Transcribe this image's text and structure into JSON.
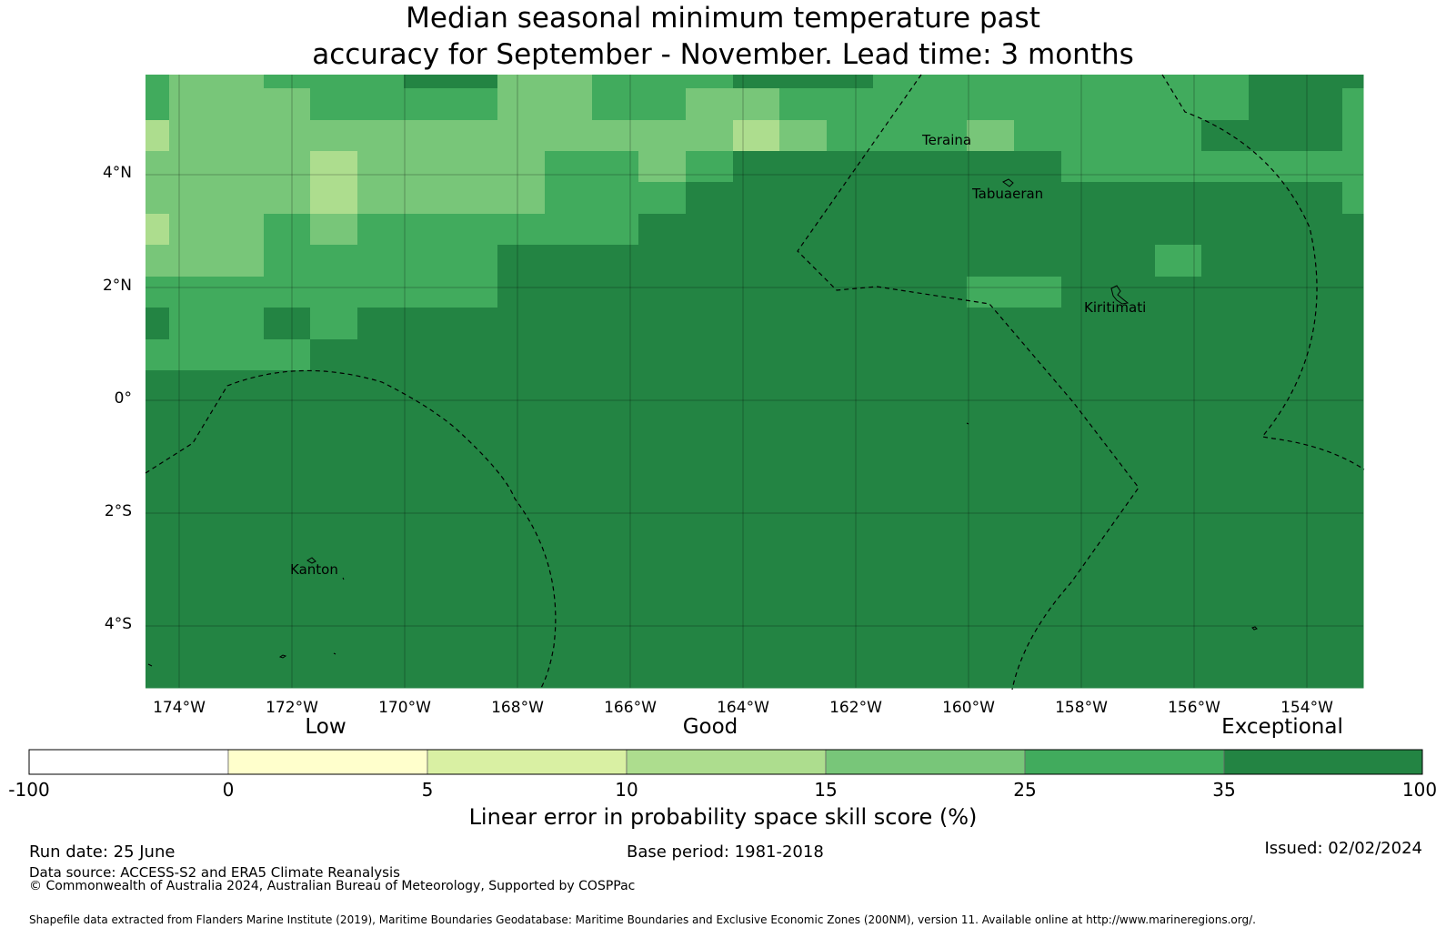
{
  "title_line1": "Median seasonal minimum temperature past",
  "title_line2": "accuracy for September - November. Lead time: 3 months",
  "map": {
    "lon_labels": [
      "174°W",
      "172°W",
      "170°W",
      "168°W",
      "166°W",
      "164°W",
      "162°W",
      "160°W",
      "158°W",
      "156°W",
      "154°W"
    ],
    "lat_labels": [
      "4°N",
      "2°N",
      "0°",
      "2°S",
      "4°S"
    ],
    "places": [
      "Teraina",
      "Tabuaeran",
      "Kiritimati",
      "Kanton"
    ]
  },
  "colorbar": {
    "bands": [
      "Low",
      "Good",
      "Exceptional"
    ],
    "ticks": [
      "-100",
      "0",
      "5",
      "10",
      "15",
      "25",
      "35",
      "100"
    ],
    "colors": [
      "#ffffff",
      "#ffffcc",
      "#d9f0a3",
      "#addd8e",
      "#78c679",
      "#41ab5d",
      "#238443"
    ],
    "title": "Linear error in probability space skill score (%)"
  },
  "footer": {
    "run_date": "Run date: 25 June",
    "base_period": "Base period: 1981-2018",
    "issued": "Issued: 02/02/2024",
    "data_source": "Data source: ACCESS-S2 and ERA5 Climate Reanalysis",
    "copyright": "© Commonwealth of Australia 2024, Australian Bureau of Meteorology, Supported by COSPPac",
    "shapefile": "Shapefile data extracted from Flanders Marine Institute (2019), Maritime Boundaries Geodatabase: Maritime Boundaries and Exclusive Economic Zones (200NM), version 11. Available online at http://www.marineregions.org/."
  }
}
